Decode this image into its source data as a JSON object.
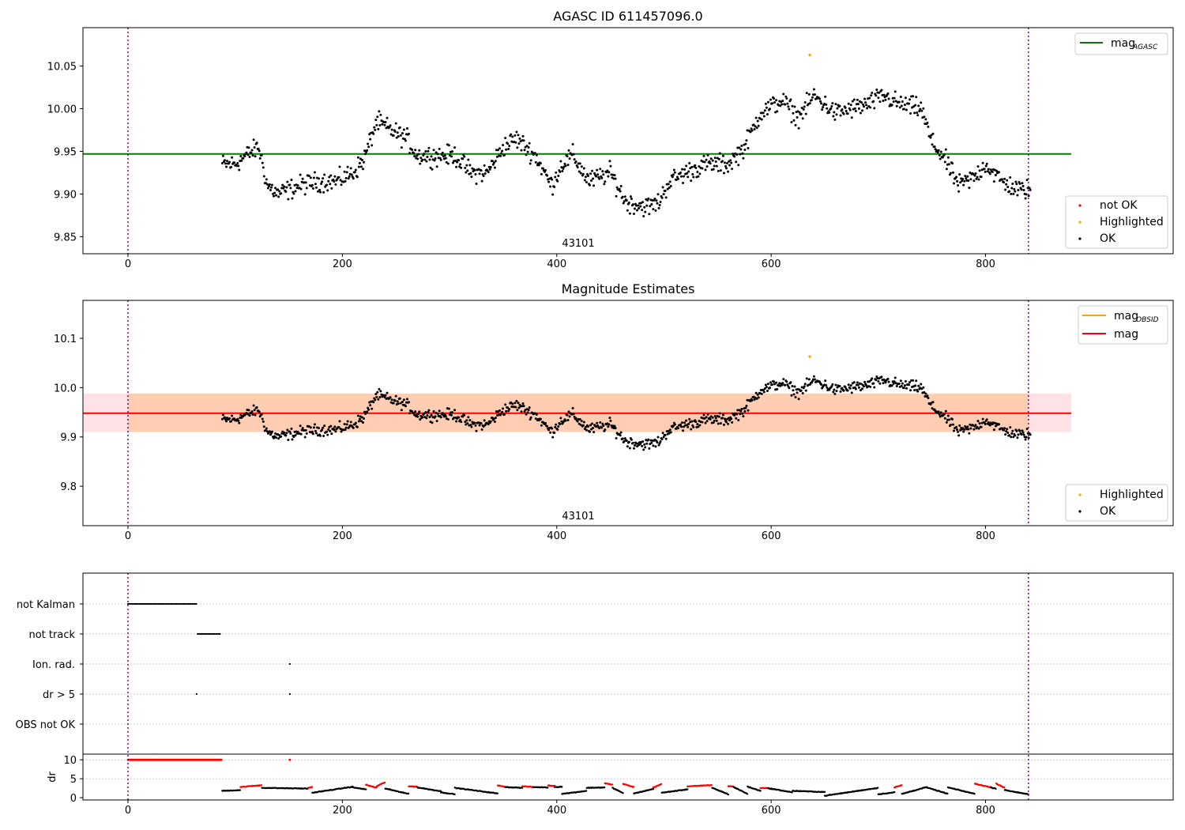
{
  "chart_data": [
    {
      "type": "scatter",
      "title": "AGASC ID 611457096.0",
      "annotation": "43101",
      "xlim": [
        -42,
        975
      ],
      "ylim": [
        9.83,
        10.095
      ],
      "xticks": [
        0,
        200,
        400,
        600,
        800
      ],
      "xtick_labels": [
        "0",
        "200",
        "400",
        "600",
        "800"
      ],
      "yticks": [
        9.85,
        9.9,
        9.95,
        10.0,
        10.05
      ],
      "ytick_labels": [
        "9.85",
        "9.90",
        "9.95",
        "10.00",
        "10.05"
      ],
      "vlines": [
        0,
        840
      ],
      "hline": {
        "value": 9.947,
        "x_range": [
          -42,
          880
        ],
        "color": "#008000"
      },
      "legend_lines": [
        {
          "label": "mag",
          "sub": "AGASC",
          "color": "#008000"
        }
      ],
      "legend_points": [
        {
          "label": "not OK",
          "color": "#ff0000"
        },
        {
          "label": "Highlighted",
          "color": "#ffa500"
        },
        {
          "label": "OK",
          "color": "#000000"
        }
      ],
      "highlighted": [
        {
          "x": 636,
          "y": 10.063
        }
      ],
      "ok_trend": [
        [
          88,
          9.935
        ],
        [
          100,
          9.935
        ],
        [
          110,
          9.945
        ],
        [
          122,
          9.955
        ],
        [
          130,
          9.91
        ],
        [
          140,
          9.9
        ],
        [
          160,
          9.91
        ],
        [
          180,
          9.915
        ],
        [
          195,
          9.915
        ],
        [
          210,
          9.925
        ],
        [
          220,
          9.94
        ],
        [
          232,
          9.985
        ],
        [
          245,
          9.975
        ],
        [
          260,
          9.965
        ],
        [
          270,
          9.945
        ],
        [
          290,
          9.945
        ],
        [
          305,
          9.945
        ],
        [
          320,
          9.925
        ],
        [
          335,
          9.925
        ],
        [
          350,
          9.955
        ],
        [
          362,
          9.965
        ],
        [
          380,
          9.945
        ],
        [
          395,
          9.91
        ],
        [
          405,
          9.935
        ],
        [
          415,
          9.945
        ],
        [
          430,
          9.915
        ],
        [
          450,
          9.925
        ],
        [
          465,
          9.89
        ],
        [
          485,
          9.885
        ],
        [
          495,
          9.89
        ],
        [
          505,
          9.915
        ],
        [
          520,
          9.925
        ],
        [
          540,
          9.935
        ],
        [
          560,
          9.935
        ],
        [
          575,
          9.955
        ],
        [
          590,
          9.995
        ],
        [
          610,
          10.01
        ],
        [
          625,
          9.99
        ],
        [
          640,
          10.015
        ],
        [
          660,
          9.995
        ],
        [
          690,
          10.005
        ],
        [
          705,
          10.015
        ],
        [
          720,
          10.005
        ],
        [
          740,
          10.0
        ],
        [
          750,
          9.96
        ],
        [
          760,
          9.945
        ],
        [
          775,
          9.91
        ],
        [
          790,
          9.92
        ],
        [
          800,
          9.935
        ],
        [
          815,
          9.915
        ],
        [
          830,
          9.905
        ],
        [
          840,
          9.905
        ]
      ],
      "ok_scatter": 0.017
    },
    {
      "type": "scatter",
      "title": "Magnitude Estimates",
      "annotation": "43101",
      "xlim": [
        -42,
        975
      ],
      "ylim": [
        9.72,
        10.177
      ],
      "xticks": [
        0,
        200,
        400,
        600,
        800
      ],
      "xtick_labels": [
        "0",
        "200",
        "400",
        "600",
        "800"
      ],
      "yticks": [
        9.8,
        9.9,
        10.0,
        10.1
      ],
      "ytick_labels": [
        "9.8",
        "9.9",
        "10.0",
        "10.1"
      ],
      "vlines": [
        0,
        840
      ],
      "band": {
        "low": 9.91,
        "high": 9.988,
        "x_range": [
          -42,
          880
        ],
        "fill": "#ffb6c1"
      },
      "band2": {
        "low": 9.91,
        "high": 9.988,
        "x_range": [
          -42,
          880
        ],
        "fill": "#ffa54f"
      },
      "hline": {
        "value": 9.948,
        "x_range": [
          -42,
          880
        ],
        "color": "#ff0000"
      },
      "legend_lines": [
        {
          "label": "mag",
          "sub": "OBSID",
          "color": "#ffa500"
        },
        {
          "label": "mag",
          "sub": "",
          "color": "#ff0000"
        }
      ],
      "legend_points": [
        {
          "label": "Highlighted",
          "color": "#ffa500"
        },
        {
          "label": "OK",
          "color": "#000000"
        }
      ],
      "highlighted": [
        {
          "x": 636,
          "y": 10.063
        }
      ]
    },
    {
      "type": "scatter",
      "title": "",
      "xlim": [
        -42,
        975
      ],
      "categories": [
        "not Kalman",
        "not track",
        "Ion. rad.",
        "dr > 5",
        "OBS not OK"
      ],
      "segments": [
        {
          "category": "not Kalman",
          "from": 0,
          "to": 64,
          "step": 1.3
        },
        {
          "category": "not track",
          "from": 65,
          "to": 87,
          "step": 1.3
        }
      ],
      "points": [
        {
          "category": "Ion. rad.",
          "x": 151
        },
        {
          "category": "dr > 5",
          "x": 64
        },
        {
          "category": "dr > 5",
          "x": 151
        }
      ],
      "vlines": [
        0,
        840
      ]
    },
    {
      "type": "scatter",
      "title": "",
      "ylabel": "dr",
      "xlim": [
        -42,
        975
      ],
      "ylim": [
        -0.6,
        11.5
      ],
      "xticks": [
        0,
        200,
        400,
        600,
        800
      ],
      "xtick_labels": [
        "0",
        "200",
        "400",
        "600",
        "800"
      ],
      "yticks": [
        0,
        5,
        10
      ],
      "ytick_labels": [
        "0",
        "5",
        "10"
      ],
      "vlines": [
        0,
        840
      ],
      "saturated": {
        "from": 0,
        "to": 87,
        "value": 10,
        "extra_x": [
          151
        ]
      },
      "segments": [
        [
          88,
          105,
          1.8,
          2.0,
          "k"
        ],
        [
          105,
          125,
          2.8,
          3.3,
          "r"
        ],
        [
          125,
          168,
          2.6,
          2.4,
          "k"
        ],
        [
          168,
          172,
          2.6,
          2.8,
          "r"
        ],
        [
          172,
          210,
          1.3,
          2.9,
          "k"
        ],
        [
          210,
          222,
          2.7,
          2.2,
          "k"
        ],
        [
          222,
          232,
          3.4,
          2.6,
          "r"
        ],
        [
          232,
          240,
          3.0,
          4.1,
          "r"
        ],
        [
          240,
          262,
          2.4,
          1.0,
          "k"
        ],
        [
          262,
          270,
          3.0,
          2.9,
          "r"
        ],
        [
          270,
          292,
          2.7,
          1.7,
          "k"
        ],
        [
          292,
          305,
          1.4,
          0.9,
          "k"
        ],
        [
          305,
          345,
          2.6,
          1.1,
          "k"
        ],
        [
          345,
          352,
          3.2,
          2.9,
          "r"
        ],
        [
          352,
          368,
          2.8,
          2.6,
          "k"
        ],
        [
          368,
          378,
          3.0,
          2.8,
          "r"
        ],
        [
          378,
          392,
          2.8,
          2.7,
          "k"
        ],
        [
          392,
          398,
          3.2,
          3.1,
          "r"
        ],
        [
          398,
          405,
          2.8,
          2.9,
          "k"
        ],
        [
          405,
          428,
          1.0,
          1.8,
          "k"
        ],
        [
          428,
          445,
          2.6,
          2.7,
          "k"
        ],
        [
          445,
          452,
          3.8,
          3.4,
          "r"
        ],
        [
          452,
          462,
          2.6,
          1.2,
          "k"
        ],
        [
          462,
          472,
          3.6,
          2.8,
          "r"
        ],
        [
          472,
          490,
          1.1,
          2.3,
          "k"
        ],
        [
          490,
          498,
          2.7,
          3.6,
          "r"
        ],
        [
          498,
          522,
          1.3,
          2.2,
          "k"
        ],
        [
          522,
          545,
          3.0,
          3.3,
          "r"
        ],
        [
          545,
          560,
          2.6,
          0.9,
          "k"
        ],
        [
          560,
          565,
          3.0,
          3.0,
          "r"
        ],
        [
          565,
          578,
          2.8,
          1.0,
          "k"
        ],
        [
          578,
          590,
          2.9,
          1.8,
          "k"
        ],
        [
          590,
          597,
          2.6,
          2.5,
          "r"
        ],
        [
          597,
          620,
          2.5,
          1.4,
          "k"
        ],
        [
          620,
          650,
          1.8,
          1.5,
          "k"
        ],
        [
          650,
          700,
          0.5,
          2.6,
          "k"
        ],
        [
          700,
          715,
          0.9,
          1.4,
          "k"
        ],
        [
          715,
          722,
          2.7,
          3.3,
          "r"
        ],
        [
          722,
          745,
          1.0,
          2.8,
          "k"
        ],
        [
          745,
          765,
          2.7,
          1.0,
          "k"
        ],
        [
          765,
          790,
          2.7,
          1.0,
          "k"
        ],
        [
          790,
          805,
          3.7,
          2.7,
          "r"
        ],
        [
          805,
          810,
          2.7,
          2.4,
          "k"
        ],
        [
          810,
          818,
          3.7,
          2.6,
          "r"
        ],
        [
          818,
          840,
          2.0,
          0.9,
          "k"
        ]
      ]
    }
  ]
}
